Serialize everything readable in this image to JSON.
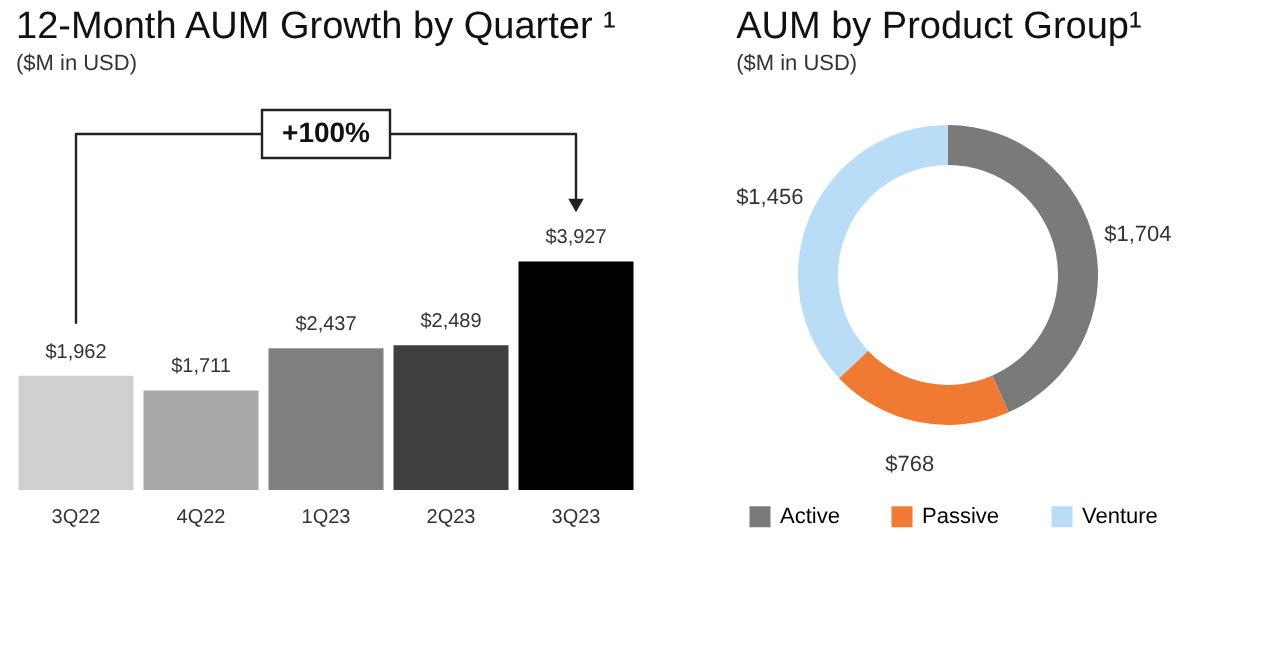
{
  "chart_data": [
    {
      "type": "bar",
      "title": "12-Month AUM Growth by Quarter ¹",
      "subtitle": "($M in USD)",
      "categories": [
        "3Q22",
        "4Q22",
        "1Q23",
        "2Q23",
        "3Q23"
      ],
      "values": [
        1962,
        1711,
        2437,
        2489,
        3927
      ],
      "colors": [
        "#d0d0d0",
        "#a9a9a9",
        "#7f7f7f",
        "#404040",
        "#000000"
      ],
      "value_labels": [
        "$1,962",
        "$1,711",
        "$2,437",
        "$2,489",
        "$3,927"
      ],
      "annotations": [
        "+100%"
      ],
      "tick_labels": "x"
    },
    {
      "type": "donut",
      "title": "AUM by Product Group¹",
      "subtitle": "($M in USD)",
      "categories": [
        "Active",
        "Passive",
        "Venture"
      ],
      "values": [
        1704,
        768,
        1456
      ],
      "colors": [
        "#7a7a7a",
        "#f07a32",
        "#b9dcf7"
      ],
      "value_labels": [
        "$1,704",
        "$768",
        "$1,456"
      ],
      "legend": "bottom"
    }
  ]
}
